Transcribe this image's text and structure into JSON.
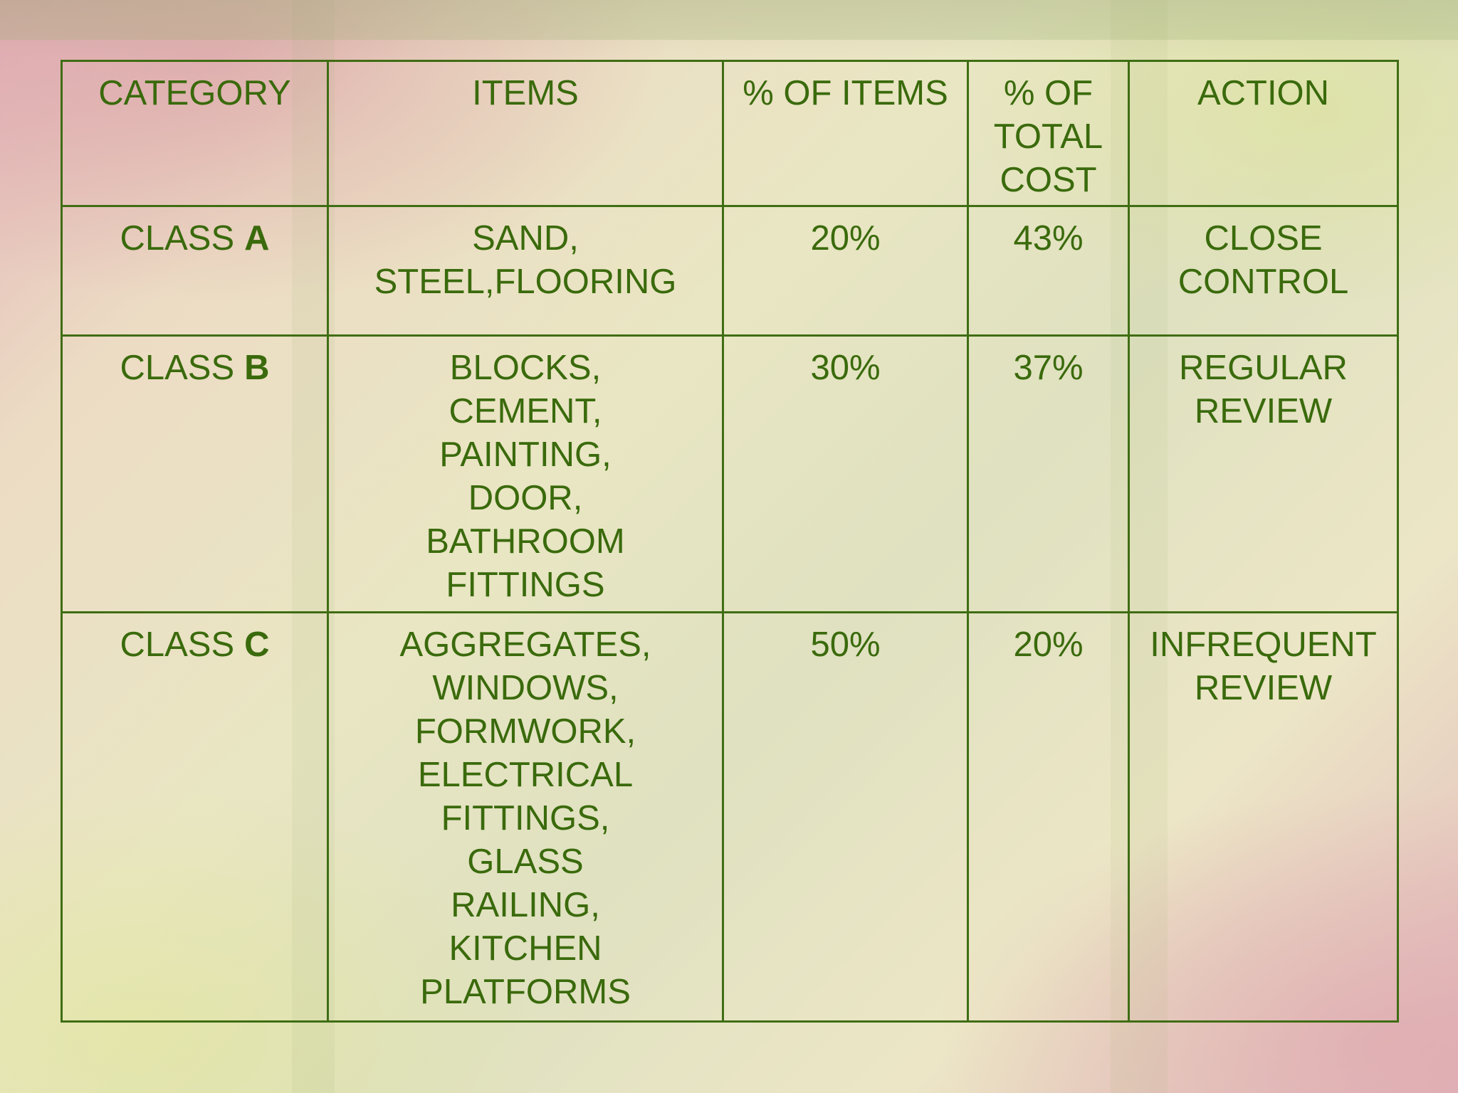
{
  "table": {
    "headers": {
      "category": "CATEGORY",
      "items": "ITEMS",
      "pct_items": "% OF ITEMS",
      "pct_cost": "% OF\nTOTAL\nCOST",
      "action": "ACTION"
    },
    "rows": [
      {
        "category_prefix": "CLASS",
        "category_letter": "A",
        "items": "SAND,\nSTEEL,FLOORING",
        "pct_items": "20%",
        "pct_cost": "43%",
        "action": "CLOSE\nCONTROL"
      },
      {
        "category_prefix": "CLASS",
        "category_letter": "B",
        "items": "BLOCKS,\nCEMENT,\nPAINTING,\nDOOR,\nBATHROOM\nFITTINGS",
        "pct_items": "30%",
        "pct_cost": "37%",
        "action": "REGULAR\nREVIEW"
      },
      {
        "category_prefix": "CLASS",
        "category_letter": "C",
        "items": "AGGREGATES,\nWINDOWS,\nFORMWORK,\nELECTRICAL\nFITTINGS,\nGLASS\nRAILING,\nKITCHEN\nPLATFORMS",
        "pct_items": "50%",
        "pct_cost": "20%",
        "action": "INFREQUENT\nREVIEW"
      }
    ]
  },
  "colors": {
    "text": "#3a6a0c",
    "border": "#3f6d14"
  }
}
